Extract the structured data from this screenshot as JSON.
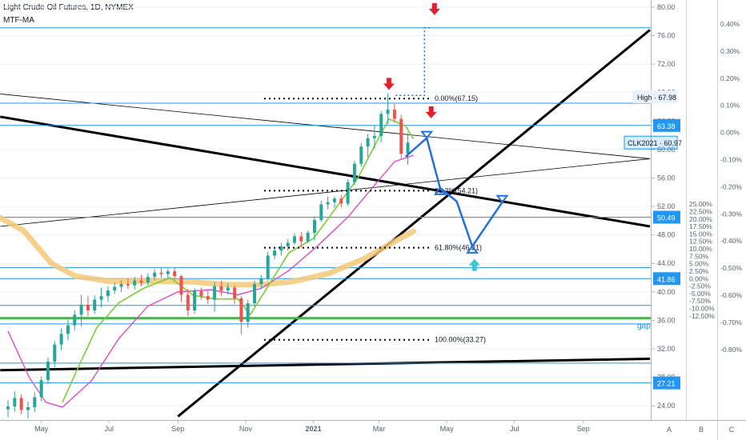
{
  "header": {
    "title": "Light Crude Oil Futures, 1D, NYMEX",
    "indicator": "MTF-MA"
  },
  "colors": {
    "bull": "#26a69a",
    "bear": "#ef5350",
    "hline": "#2196f3",
    "trend": "#000000",
    "ma_fast": "#76d130",
    "ma_slow": "#e040c8",
    "ma_long": "#f5c879",
    "arrow_red": "#e5202e",
    "arrow_blue": "#1e6fe0",
    "arrow_cyan": "#3cc8d2",
    "green_line": "#4caf50",
    "grid": "#eef0f4"
  },
  "chart_data": {
    "type": "candlestick",
    "title": "Light Crude Oil Futures, 1D, NYMEX",
    "ylim": [
      22,
      81
    ],
    "x_ticks": [
      "May",
      "Jul",
      "Sep",
      "Nov",
      "2021",
      "Mar",
      "May",
      "Jul",
      "Sep"
    ],
    "x_domain": [
      "2020-04-01",
      "2021-10-31"
    ],
    "price_ticks": [
      "80.00",
      "76.00",
      "72.00",
      "68.00",
      "64.00",
      "60.00",
      "56.00",
      "52.00",
      "48.00",
      "44.00",
      "40.00",
      "36.00",
      "32.00",
      "28.00",
      "24.00"
    ],
    "percent_ticks": [
      "25.00%",
      "22.50%",
      "20.00%",
      "17.50%",
      "15.00%",
      "12.50%",
      "10.00%",
      "7.50%",
      "5.00%",
      "2.50%",
      "0.00%",
      "-2.50%",
      "-5.00%",
      "-7.50%",
      "-10.00%",
      "-12.50%"
    ],
    "percent_scale": {
      "zero_price": 41.86,
      "step_pct": 2.5
    },
    "pane_ticks": [
      "0.40%",
      "0.30%",
      "0.20%",
      "0.10%",
      "0.00%",
      "-0.10%",
      "-0.20%",
      "-0.30%",
      "-0.40%",
      "-0.50%",
      "-0.60%",
      "-0.70%",
      "-0.80%"
    ],
    "horizontal_levels": [
      77.1,
      66.5,
      63.38,
      50.49,
      43.4,
      41.86,
      38.1,
      35.5,
      30.0,
      27.21
    ],
    "green_level": 36.3,
    "price_tags": [
      {
        "label": "High",
        "value": "67.98",
        "price": 67.4,
        "style": "high"
      },
      {
        "label": "",
        "value": "63.38",
        "price": 63.38,
        "style": "blue"
      },
      {
        "label": "CLK2021",
        "value": "60.97",
        "price": 60.97,
        "style": "current"
      },
      {
        "label": "",
        "value": "50.49",
        "price": 50.49,
        "style": "blue"
      },
      {
        "label": "",
        "value": "41.86",
        "price": 41.86,
        "style": "blue"
      },
      {
        "label": "",
        "value": "27.21",
        "price": 27.21,
        "style": "blue"
      }
    ],
    "fib_levels": [
      {
        "label": "0.00%(67.15)",
        "price": 67.15
      },
      {
        "label": "38.2%(54.21)",
        "price": 54.21
      },
      {
        "label": "61.80%(46.21)",
        "price": 46.21
      },
      {
        "label": "100.00%(33.27)",
        "price": 33.27
      }
    ],
    "trendlines": [
      {
        "from": [
          "2020-03-25",
          64.6
        ],
        "to": [
          "2021-10-31",
          49.2
        ],
        "weight": "thick"
      },
      {
        "from": [
          "2020-03-25",
          67.8
        ],
        "to": [
          "2021-10-31",
          58.7
        ],
        "weight": "thin"
      },
      {
        "from": [
          "2020-03-25",
          49.2
        ],
        "to": [
          "2021-10-31",
          58.7
        ],
        "weight": "thin"
      },
      {
        "from": [
          "2020-09-01",
          22.5
        ],
        "to": [
          "2021-10-31",
          76.8
        ],
        "weight": "thick"
      },
      {
        "from": [
          "2020-03-25",
          29.0
        ],
        "to": [
          "2021-10-31",
          30.6
        ],
        "weight": "thick"
      }
    ],
    "gap_label": "gap",
    "axis_buttons": [
      "A",
      "B",
      "C"
    ],
    "candles": [
      [
        "2020-04-01",
        23.5,
        24.8,
        22.4,
        23.9
      ],
      [
        "2020-04-07",
        23.9,
        26.0,
        23.2,
        25.1
      ],
      [
        "2020-04-13",
        25.1,
        25.6,
        22.8,
        23.4
      ],
      [
        "2020-04-19",
        23.4,
        24.6,
        22.2,
        23.8
      ],
      [
        "2020-04-25",
        23.8,
        25.9,
        23.1,
        25.2
      ],
      [
        "2020-05-01",
        25.2,
        28.1,
        24.6,
        27.6
      ],
      [
        "2020-05-07",
        27.6,
        30.8,
        27.0,
        30.2
      ],
      [
        "2020-05-13",
        30.2,
        33.1,
        29.4,
        32.6
      ],
      [
        "2020-05-19",
        32.6,
        34.9,
        31.8,
        34.1
      ],
      [
        "2020-05-25",
        34.1,
        36.0,
        33.2,
        35.3
      ],
      [
        "2020-05-31",
        35.3,
        37.4,
        34.6,
        36.8
      ],
      [
        "2020-06-06",
        36.8,
        39.6,
        35.1,
        38.2
      ],
      [
        "2020-06-12",
        38.2,
        39.4,
        36.6,
        37.4
      ],
      [
        "2020-06-18",
        37.4,
        39.5,
        36.9,
        38.9
      ],
      [
        "2020-06-24",
        38.9,
        40.6,
        37.8,
        39.4
      ],
      [
        "2020-06-30",
        39.4,
        40.8,
        38.6,
        40.2
      ],
      [
        "2020-07-06",
        40.2,
        41.3,
        39.7,
        40.7
      ],
      [
        "2020-07-12",
        40.7,
        41.6,
        40.0,
        41.1
      ],
      [
        "2020-07-18",
        41.1,
        41.9,
        40.4,
        40.9
      ],
      [
        "2020-07-24",
        40.9,
        42.1,
        40.3,
        41.6
      ],
      [
        "2020-07-30",
        41.6,
        42.4,
        40.8,
        41.3
      ],
      [
        "2020-08-05",
        41.3,
        42.6,
        40.9,
        42.1
      ],
      [
        "2020-08-11",
        42.1,
        43.2,
        41.6,
        42.7
      ],
      [
        "2020-08-17",
        42.7,
        43.4,
        42.0,
        42.5
      ],
      [
        "2020-08-23",
        42.5,
        43.3,
        41.8,
        42.9
      ],
      [
        "2020-08-29",
        42.9,
        43.4,
        41.7,
        42.2
      ],
      [
        "2020-09-04",
        42.2,
        42.4,
        38.6,
        39.6
      ],
      [
        "2020-09-10",
        39.6,
        40.4,
        36.6,
        37.4
      ],
      [
        "2020-09-16",
        37.4,
        40.5,
        36.9,
        40.1
      ],
      [
        "2020-09-22",
        40.1,
        40.6,
        38.9,
        39.4
      ],
      [
        "2020-09-28",
        39.4,
        40.3,
        38.3,
        38.9
      ],
      [
        "2020-10-04",
        38.9,
        41.4,
        37.2,
        40.8
      ],
      [
        "2020-10-10",
        40.8,
        41.6,
        39.4,
        40.2
      ],
      [
        "2020-10-16",
        40.2,
        41.2,
        39.6,
        40.6
      ],
      [
        "2020-10-22",
        40.6,
        40.9,
        38.3,
        39.1
      ],
      [
        "2020-10-28",
        39.1,
        39.4,
        34.0,
        35.8
      ],
      [
        "2020-11-03",
        35.8,
        38.9,
        35.0,
        38.4
      ],
      [
        "2020-11-09",
        38.4,
        41.6,
        38.0,
        41.1
      ],
      [
        "2020-11-15",
        41.1,
        42.4,
        40.4,
        41.9
      ],
      [
        "2020-11-21",
        41.9,
        45.6,
        41.6,
        45.1
      ],
      [
        "2020-11-27",
        45.1,
        46.3,
        44.6,
        45.8
      ],
      [
        "2020-12-03",
        45.8,
        46.9,
        45.1,
        46.4
      ],
      [
        "2020-12-09",
        46.4,
        47.4,
        45.8,
        46.9
      ],
      [
        "2020-12-15",
        46.9,
        48.2,
        46.6,
        47.8
      ],
      [
        "2020-12-21",
        47.8,
        48.4,
        46.1,
        47.1
      ],
      [
        "2020-12-27",
        47.1,
        48.6,
        46.9,
        48.3
      ],
      [
        "2021-01-02",
        48.3,
        50.6,
        47.2,
        50.1
      ],
      [
        "2021-01-08",
        50.1,
        52.8,
        49.8,
        52.3
      ],
      [
        "2021-01-14",
        52.3,
        53.4,
        51.6,
        52.6
      ],
      [
        "2021-01-20",
        52.6,
        53.4,
        51.8,
        53.1
      ],
      [
        "2021-01-26",
        53.1,
        53.6,
        51.9,
        52.4
      ],
      [
        "2021-02-01",
        52.4,
        55.8,
        52.1,
        55.4
      ],
      [
        "2021-02-07",
        55.4,
        58.4,
        55.0,
        58.0
      ],
      [
        "2021-02-13",
        58.0,
        60.9,
        57.6,
        60.4
      ],
      [
        "2021-02-19",
        60.4,
        62.2,
        58.9,
        61.6
      ],
      [
        "2021-02-25",
        61.6,
        63.4,
        60.1,
        61.9
      ],
      [
        "2021-03-03",
        61.9,
        65.4,
        61.0,
        65.0
      ],
      [
        "2021-03-09",
        65.0,
        67.9,
        63.6,
        65.6
      ],
      [
        "2021-03-15",
        65.6,
        66.4,
        63.8,
        64.3
      ],
      [
        "2021-03-21",
        64.3,
        64.9,
        58.6,
        59.4
      ],
      [
        "2021-03-27",
        59.4,
        62.4,
        57.9,
        60.97
      ]
    ],
    "ma_fast": [
      [
        "2020-05-20",
        24.5
      ],
      [
        "2020-06-05",
        30.0
      ],
      [
        "2020-06-20",
        35.0
      ],
      [
        "2020-07-10",
        38.5
      ],
      [
        "2020-08-01",
        40.5
      ],
      [
        "2020-08-25",
        42.0
      ],
      [
        "2020-09-15",
        39.5
      ],
      [
        "2020-10-05",
        39.0
      ],
      [
        "2020-10-25",
        39.0
      ],
      [
        "2020-11-05",
        36.8
      ],
      [
        "2020-11-20",
        40.5
      ],
      [
        "2020-12-10",
        45.5
      ],
      [
        "2021-01-01",
        47.5
      ],
      [
        "2021-01-20",
        51.5
      ],
      [
        "2021-02-10",
        56.0
      ],
      [
        "2021-02-25",
        60.5
      ],
      [
        "2021-03-10",
        64.3
      ],
      [
        "2021-03-25",
        63.3
      ],
      [
        "2021-04-01",
        61.5
      ]
    ],
    "ma_slow": [
      [
        "2020-04-01",
        34.5
      ],
      [
        "2020-04-20",
        28.0
      ],
      [
        "2020-05-05",
        24.5
      ],
      [
        "2020-05-20",
        23.8
      ],
      [
        "2020-06-15",
        27.5
      ],
      [
        "2020-07-10",
        33.5
      ],
      [
        "2020-08-05",
        38.0
      ],
      [
        "2020-09-01",
        40.0
      ],
      [
        "2020-10-01",
        40.3
      ],
      [
        "2020-10-25",
        39.6
      ],
      [
        "2020-11-15",
        40.5
      ],
      [
        "2020-12-10",
        43.0
      ],
      [
        "2021-01-05",
        46.5
      ],
      [
        "2021-02-01",
        50.5
      ],
      [
        "2021-02-25",
        55.0
      ],
      [
        "2021-03-15",
        58.3
      ],
      [
        "2021-04-01",
        59.2
      ]
    ],
    "ma_long": [
      [
        "2020-03-25",
        50.4
      ],
      [
        "2020-04-15",
        48.6
      ],
      [
        "2020-05-10",
        44.0
      ],
      [
        "2020-06-01",
        42.2
      ],
      [
        "2020-07-01",
        41.5
      ],
      [
        "2020-08-15",
        41.5
      ],
      [
        "2020-09-15",
        41.4
      ],
      [
        "2020-10-15",
        41.0
      ],
      [
        "2020-11-15",
        41.0
      ],
      [
        "2020-12-15",
        41.5
      ],
      [
        "2021-01-15",
        42.6
      ],
      [
        "2021-02-15",
        44.6
      ],
      [
        "2021-03-20",
        47.5
      ],
      [
        "2021-04-01",
        48.5
      ]
    ],
    "projection_path": [
      [
        "2021-03-25",
        59.0
      ],
      [
        "2021-04-13",
        61.6
      ],
      [
        "2021-04-25",
        54.6
      ],
      [
        "2021-05-10",
        52.7
      ],
      [
        "2021-05-24",
        46.4
      ],
      [
        "2021-06-20",
        52.6
      ]
    ],
    "dotted_projection": [
      [
        "2021-03-16",
        67.6
      ],
      [
        "2021-04-11",
        67.6
      ],
      [
        "2021-04-11",
        77.1
      ],
      [
        "2021-04-18",
        77.1
      ]
    ],
    "markers": [
      {
        "type": "down",
        "color": "red",
        "x": "2021-03-10",
        "price": 68.6
      },
      {
        "type": "down",
        "color": "red",
        "x": "2021-04-20",
        "price": 79.1
      },
      {
        "type": "down",
        "color": "red",
        "x": "2021-04-17",
        "price": 64.6
      },
      {
        "type": "up",
        "color": "cyan",
        "x": "2021-05-26",
        "price": 44.4
      }
    ]
  }
}
